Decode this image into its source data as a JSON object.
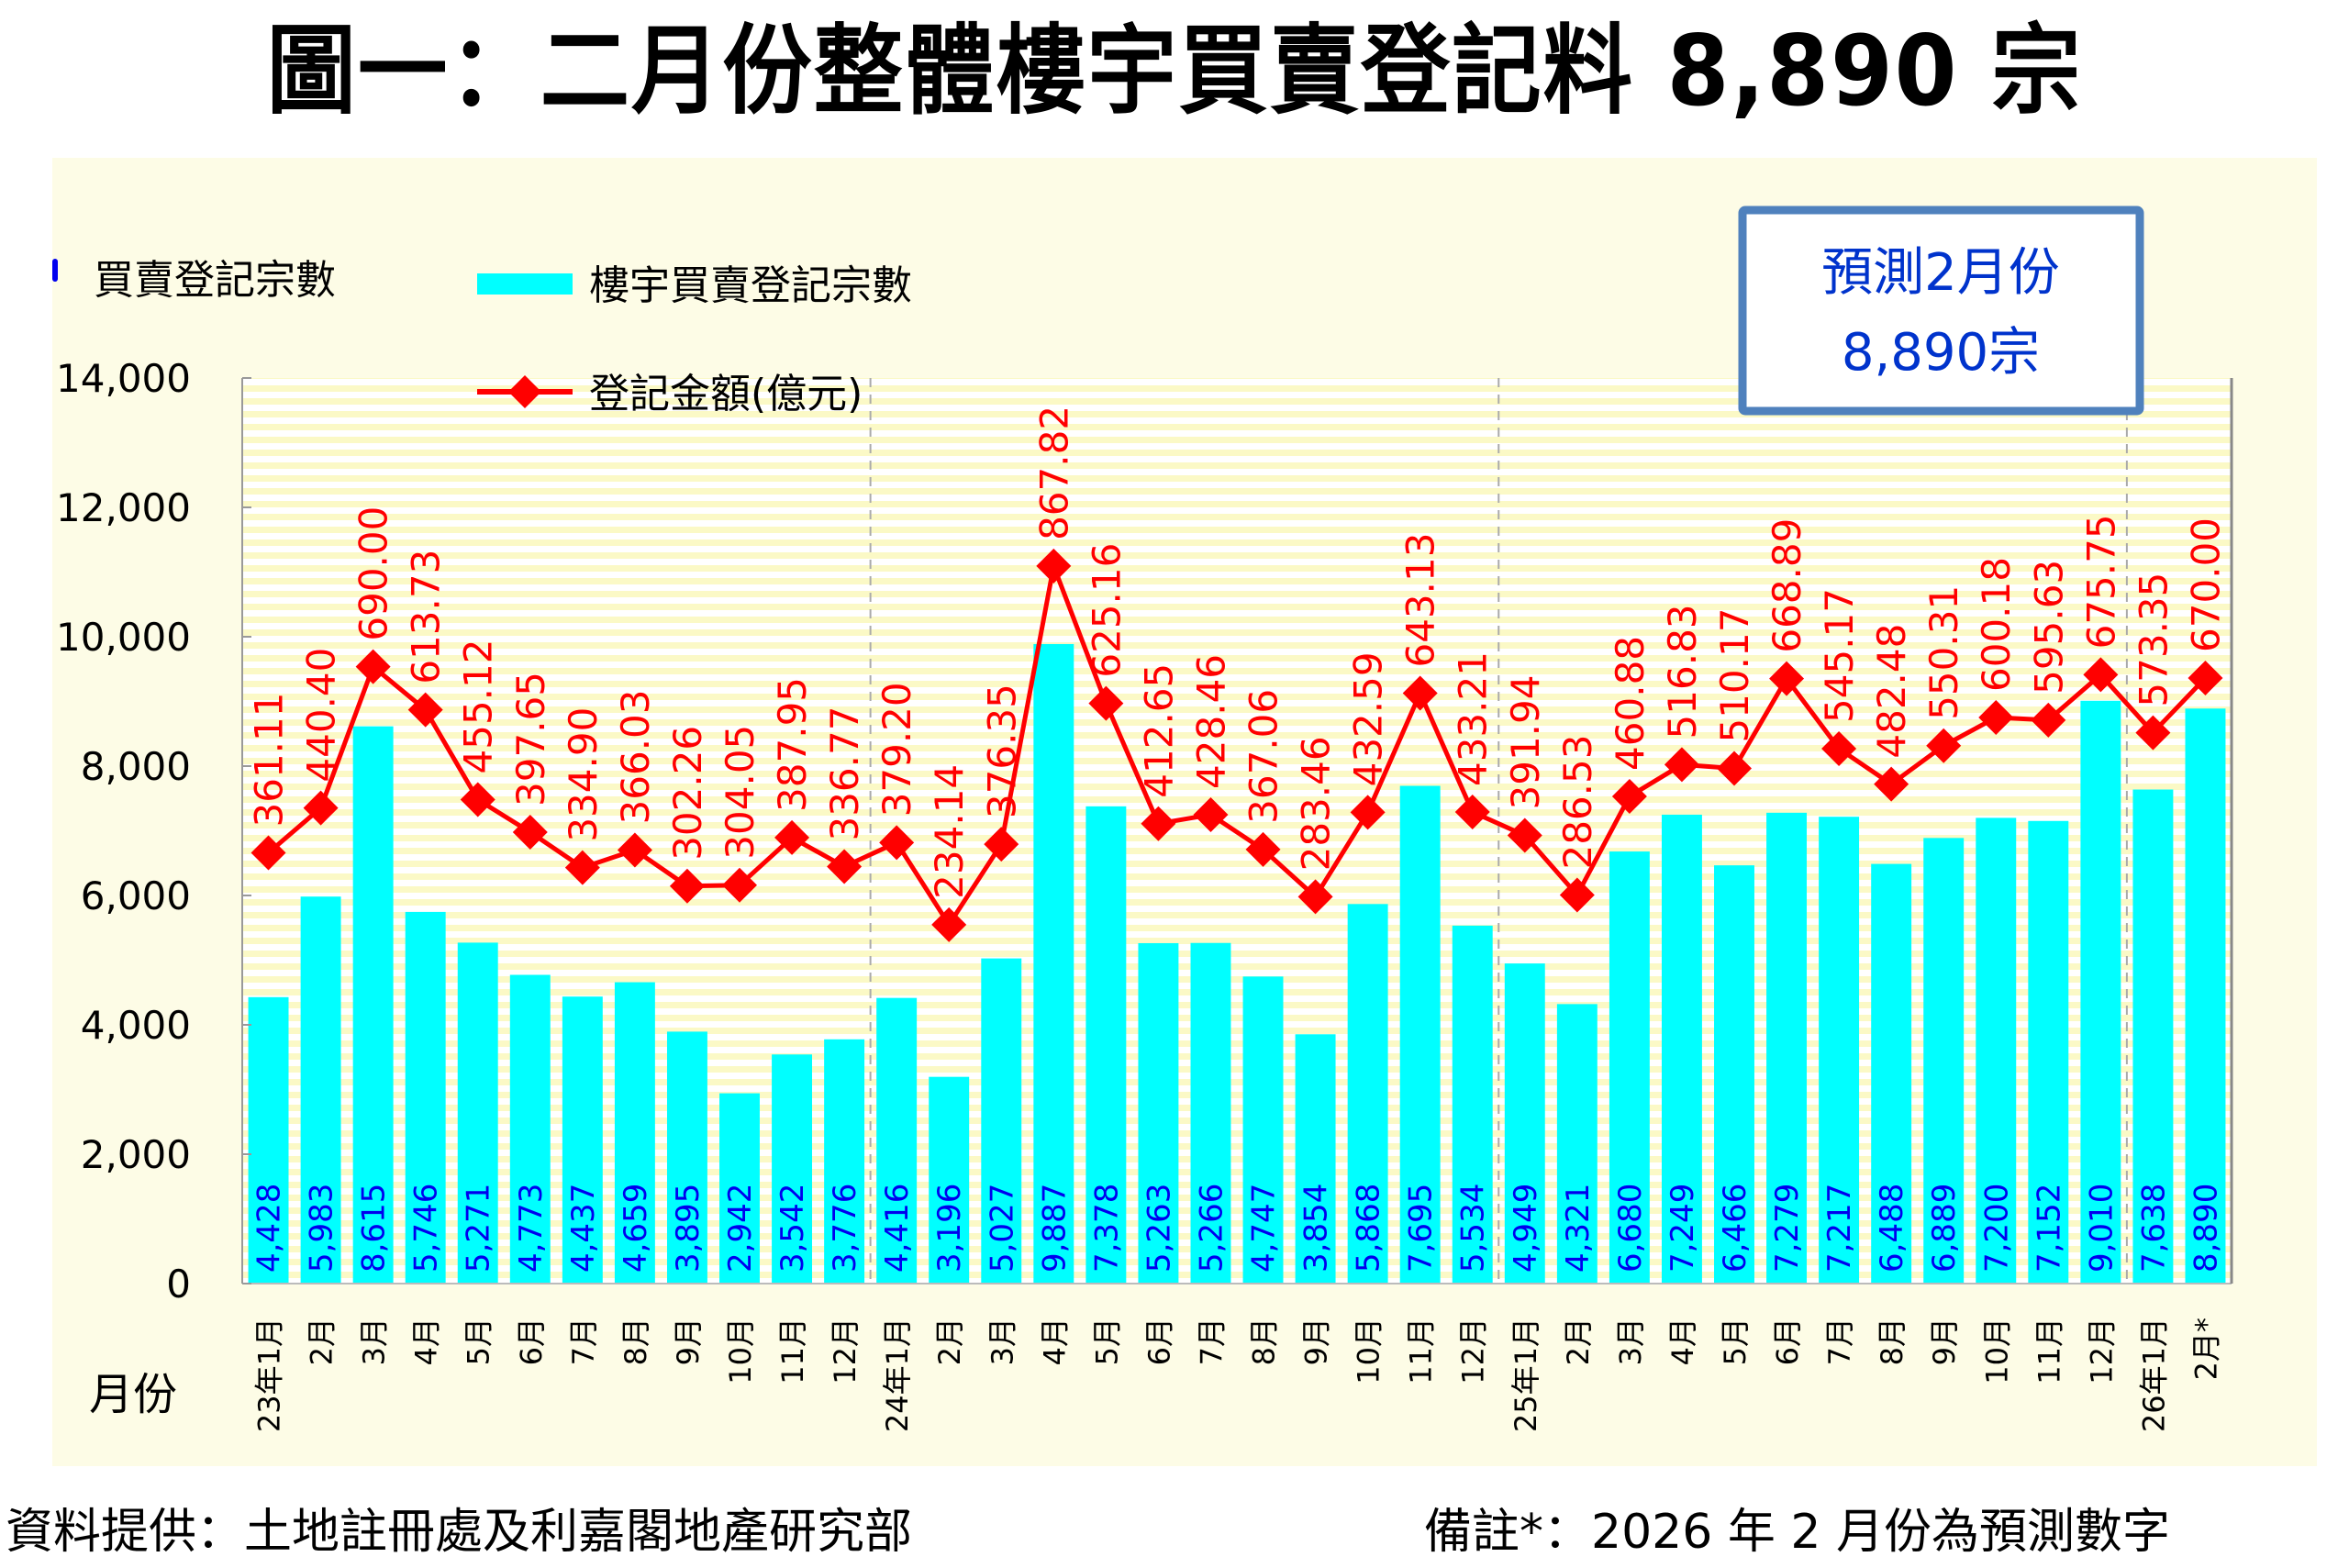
{
  "title": "圖一：二月份整體樓宇買賣登記料 8,890 宗",
  "footer": {
    "source": "資料提供：土地註冊處及利嘉閣地產研究部",
    "note": "備註*：2026 年 2 月份為預測數字"
  },
  "colors": {
    "bar": "#00ffff",
    "bar_label": "#0000ee",
    "line": "#ff0000",
    "line_label": "#ff0000",
    "callout_border": "#4f81bd",
    "callout_text": "#0033cc",
    "panel_bg": "#fdfce6",
    "stripe": "#fbf9c6"
  },
  "chart_data": {
    "type": "bar",
    "title": "圖一：二月份整體樓宇買賣登記料 8,890 宗",
    "ylabel": "買賣登記宗數",
    "xlabel": "月份",
    "ylim": [
      0,
      14000
    ],
    "y2lim": [
      -400,
      1200
    ],
    "yticks": [
      "0",
      "2,000",
      "4,000",
      "6,000",
      "8,000",
      "10,000",
      "12,000",
      "14,000"
    ],
    "ytick_values": [
      0,
      2000,
      4000,
      6000,
      8000,
      10000,
      12000,
      14000
    ],
    "grid": false,
    "legend_position": "top-left",
    "categories": [
      "23年1月",
      "2月",
      "3月",
      "4月",
      "5月",
      "6月",
      "7月",
      "8月",
      "9月",
      "10月",
      "11月",
      "12月",
      "24年1月",
      "2月",
      "3月",
      "4月",
      "5月",
      "6月",
      "7月",
      "8月",
      "9月",
      "10月",
      "11月",
      "12月",
      "25年1月",
      "2月",
      "3月",
      "4月",
      "5月",
      "6月",
      "7月",
      "8月",
      "9月",
      "10月",
      "11月",
      "12月",
      "26年1月",
      "2月*"
    ],
    "year_separators_after_index": [
      11,
      23,
      35
    ],
    "series": [
      {
        "name": "樓宇買賣登記宗數",
        "type": "bar",
        "axis": "left",
        "values": [
          4428,
          5983,
          8615,
          5746,
          5271,
          4773,
          4437,
          4659,
          3895,
          2942,
          3542,
          3776,
          4416,
          3196,
          5027,
          9887,
          7378,
          5263,
          5266,
          4747,
          3854,
          5868,
          7695,
          5534,
          4949,
          4321,
          6680,
          7249,
          6466,
          7279,
          7217,
          6488,
          6889,
          7200,
          7152,
          9010,
          7638,
          8890
        ],
        "labels": [
          "4,428",
          "5,983",
          "8,615",
          "5,746",
          "5,271",
          "4,773",
          "4,437",
          "4,659",
          "3,895",
          "2,942",
          "3,542",
          "3,776",
          "4,416",
          "3,196",
          "5,027",
          "9,887",
          "7,378",
          "5,263",
          "5,266",
          "4,747",
          "3,854",
          "5,868",
          "7,695",
          "5,534",
          "4,949",
          "4,321",
          "6,680",
          "7,249",
          "6,466",
          "7,279",
          "7,217",
          "6,488",
          "6,889",
          "7,200",
          "7,152",
          "9,010",
          "7,638",
          "8,890"
        ]
      },
      {
        "name": "登記金額(億元)",
        "type": "line",
        "axis": "right-hidden",
        "values": [
          361.11,
          440.4,
          690.0,
          613.73,
          455.12,
          397.65,
          334.9,
          366.03,
          302.26,
          304.05,
          387.95,
          336.77,
          379.2,
          234.14,
          376.35,
          867.82,
          625.16,
          412.65,
          428.46,
          367.06,
          283.46,
          432.59,
          643.13,
          433.21,
          391.94,
          286.53,
          460.88,
          516.83,
          510.17,
          668.89,
          545.17,
          482.48,
          550.31,
          600.18,
          595.63,
          675.75,
          573.35,
          670.0
        ],
        "labels": [
          "361.11",
          "440.40",
          "690.00",
          "613.73",
          "455.12",
          "397.65",
          "334.90",
          "366.03",
          "302.26",
          "304.05",
          "387.95",
          "336.77",
          "379.20",
          "234.14",
          "376.35",
          "867.82",
          "625.16",
          "412.65",
          "428.46",
          "367.06",
          "283.46",
          "432.59",
          "643.13",
          "433.21",
          "391.94",
          "286.53",
          "460.88",
          "516.83",
          "510.17",
          "668.89",
          "545.17",
          "482.48",
          "550.31",
          "600.18",
          "595.63",
          "675.75",
          "573.35",
          "670.00"
        ]
      }
    ],
    "annotation": {
      "line1": "預測2月份",
      "line2": "8,890宗"
    }
  }
}
